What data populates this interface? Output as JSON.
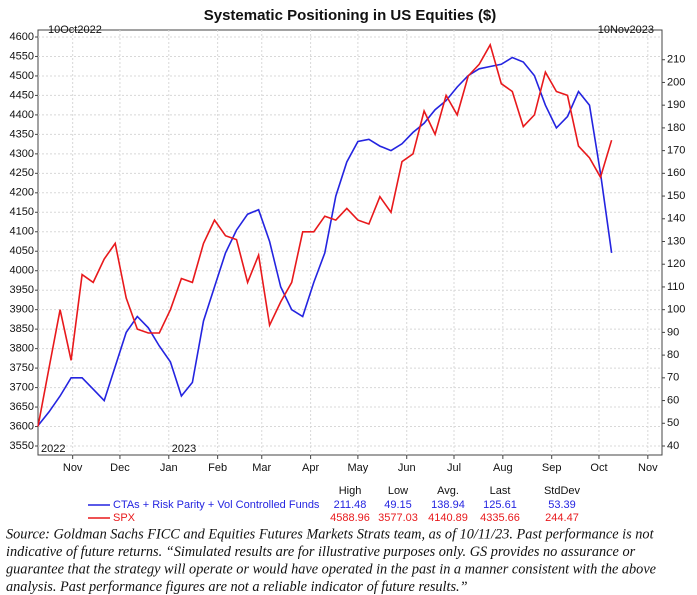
{
  "chart_data": {
    "type": "line",
    "title": "Systematic Positioning in US Equities ($)",
    "start_label": "10Oct2022",
    "end_label": "10Nov2023",
    "year_labels": [
      "2022",
      "2023"
    ],
    "xlim": [
      "2022-10-10",
      "2023-11-10"
    ],
    "xticks": [
      {
        "value": "2022-11-01",
        "label": "Nov"
      },
      {
        "value": "2022-12-01",
        "label": "Dec"
      },
      {
        "value": "2023-01-01",
        "label": "Jan"
      },
      {
        "value": "2023-02-01",
        "label": "Feb"
      },
      {
        "value": "2023-03-01",
        "label": "Mar"
      },
      {
        "value": "2023-04-01",
        "label": "Apr"
      },
      {
        "value": "2023-05-01",
        "label": "May"
      },
      {
        "value": "2023-06-01",
        "label": "Jun"
      },
      {
        "value": "2023-07-01",
        "label": "Jul"
      },
      {
        "value": "2023-08-01",
        "label": "Aug"
      },
      {
        "value": "2023-09-01",
        "label": "Sep"
      },
      {
        "value": "2023-10-01",
        "label": "Oct"
      },
      {
        "value": "2023-11-01",
        "label": "Nov"
      }
    ],
    "ylim": [
      3550,
      4600
    ],
    "yticks": [
      3550,
      3600,
      3650,
      3700,
      3750,
      3800,
      3850,
      3900,
      3950,
      4000,
      4050,
      4100,
      4150,
      4200,
      4250,
      4300,
      4350,
      4400,
      4450,
      4500,
      4550,
      4600
    ],
    "y2lim": [
      40,
      220
    ],
    "y2ticks": [
      40,
      50,
      60,
      70,
      80,
      90,
      100,
      110,
      120,
      130,
      140,
      150,
      160,
      170,
      180,
      190,
      200,
      210
    ],
    "grid": true,
    "x": [
      "2022-10-10",
      "2022-10-17",
      "2022-10-24",
      "2022-10-31",
      "2022-11-07",
      "2022-11-14",
      "2022-11-21",
      "2022-11-28",
      "2022-12-05",
      "2022-12-12",
      "2022-12-19",
      "2022-12-26",
      "2023-01-02",
      "2023-01-09",
      "2023-01-16",
      "2023-01-23",
      "2023-01-30",
      "2023-02-06",
      "2023-02-13",
      "2023-02-20",
      "2023-02-27",
      "2023-03-06",
      "2023-03-13",
      "2023-03-20",
      "2023-03-27",
      "2023-04-03",
      "2023-04-10",
      "2023-04-17",
      "2023-04-24",
      "2023-05-01",
      "2023-05-08",
      "2023-05-15",
      "2023-05-22",
      "2023-05-29",
      "2023-06-05",
      "2023-06-12",
      "2023-06-19",
      "2023-06-26",
      "2023-07-03",
      "2023-07-10",
      "2023-07-17",
      "2023-07-24",
      "2023-07-31",
      "2023-08-07",
      "2023-08-14",
      "2023-08-21",
      "2023-08-28",
      "2023-09-04",
      "2023-09-11",
      "2023-09-18",
      "2023-09-25",
      "2023-10-02",
      "2023-10-09"
    ],
    "stats_columns": [
      "High",
      "Low",
      "Avg.",
      "Last",
      "StdDev"
    ],
    "series": [
      {
        "name": "CTAs + Risk Parity + Vol Controlled Funds",
        "color": "#2424e0",
        "axis": "y2",
        "stats": [
          211.48,
          49.15,
          138.94,
          125.61,
          53.39
        ],
        "values": [
          49,
          55,
          62,
          70,
          70,
          65,
          60,
          75,
          90,
          97,
          92,
          84,
          77,
          62,
          68,
          95,
          110,
          125,
          135,
          142,
          144,
          130,
          110,
          100,
          97,
          112,
          125,
          150,
          165,
          174,
          175,
          172,
          170,
          173,
          178,
          182,
          188,
          192,
          198,
          203,
          206,
          207,
          208,
          211,
          209,
          203,
          190,
          180,
          185,
          196,
          190,
          160,
          125
        ]
      },
      {
        "name": "SPX",
        "color": "#e8191c",
        "axis": "y",
        "stats": [
          4588.96,
          3577.03,
          4140.89,
          4335.66,
          244.47
        ],
        "values": [
          3600,
          3750,
          3900,
          3770,
          3990,
          3970,
          4030,
          4070,
          3930,
          3850,
          3840,
          3840,
          3900,
          3980,
          3970,
          4070,
          4130,
          4090,
          4080,
          3970,
          4040,
          3860,
          3920,
          3970,
          4100,
          4100,
          4140,
          4130,
          4160,
          4130,
          4120,
          4190,
          4150,
          4280,
          4300,
          4410,
          4350,
          4450,
          4400,
          4500,
          4530,
          4580,
          4480,
          4460,
          4370,
          4400,
          4510,
          4460,
          4450,
          4320,
          4290,
          4240,
          4335
        ]
      }
    ],
    "source_lines": [
      "Source: Goldman Sachs FICC and Equities Futures Markets Strats team, as of 10/11/23. Past performance is not",
      "indicative of future returns. “Simulated results are for illustrative purposes only. GS provides no assurance or",
      "guarantee that the strategy will operate or would have operated in the past in a manner consistent with the above",
      "analysis. Past performance figures are not a reliable indicator of future results.”"
    ]
  }
}
